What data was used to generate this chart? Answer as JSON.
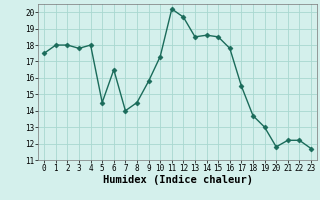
{
  "x": [
    0,
    1,
    2,
    3,
    4,
    5,
    6,
    7,
    8,
    9,
    10,
    11,
    12,
    13,
    14,
    15,
    16,
    17,
    18,
    19,
    20,
    21,
    22,
    23
  ],
  "y": [
    17.5,
    18.0,
    18.0,
    17.8,
    18.0,
    14.5,
    16.5,
    14.0,
    14.5,
    15.8,
    17.3,
    20.2,
    19.7,
    18.5,
    18.6,
    18.5,
    17.8,
    15.5,
    13.7,
    13.0,
    11.8,
    12.2,
    12.2,
    11.7
  ],
  "line_color": "#1a6b5a",
  "marker": "D",
  "marker_size": 2.5,
  "bg_color": "#d4f0ec",
  "grid_color": "#a8d8d0",
  "xlabel": "Humidex (Indice chaleur)",
  "ylabel": "",
  "ylim": [
    11,
    20.5
  ],
  "xlim": [
    -0.5,
    23.5
  ],
  "yticks": [
    11,
    12,
    13,
    14,
    15,
    16,
    17,
    18,
    19,
    20
  ],
  "xticks": [
    0,
    1,
    2,
    3,
    4,
    5,
    6,
    7,
    8,
    9,
    10,
    11,
    12,
    13,
    14,
    15,
    16,
    17,
    18,
    19,
    20,
    21,
    22,
    23
  ],
  "tick_fontsize": 5.5,
  "xlabel_fontsize": 7.5,
  "linewidth": 1.0
}
